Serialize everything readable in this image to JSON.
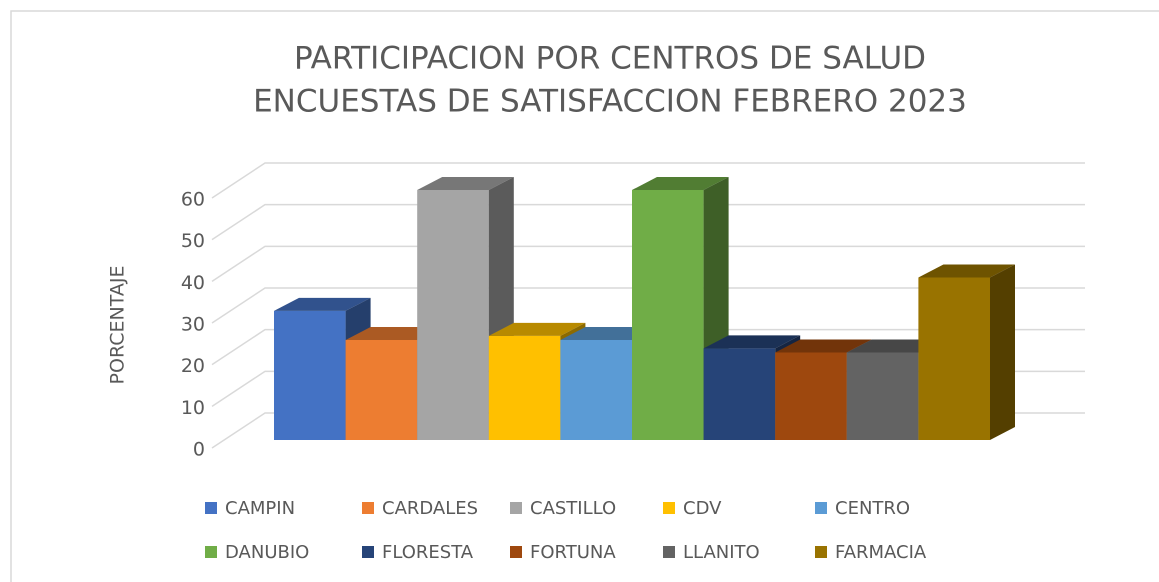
{
  "chart_data": {
    "type": "bar3d",
    "title": [
      "PARTICIPACION POR CENTROS DE SALUD",
      "ENCUESTAS DE SATISFACCION FEBRERO 2023"
    ],
    "y_label": "PORCENTAJE",
    "ylim": [
      0,
      60
    ],
    "yticks": [
      0,
      10,
      20,
      30,
      40,
      50,
      60
    ],
    "grid": true,
    "legend": "bottom",
    "series": [
      {
        "name": "CAMPIN",
        "color": "#4472c4",
        "values": [
          31
        ]
      },
      {
        "name": "CARDALES",
        "color": "#ed7d31",
        "values": [
          24
        ]
      },
      {
        "name": "CASTILLO",
        "color": "#a5a5a5",
        "values": [
          60
        ]
      },
      {
        "name": "CDV",
        "color": "#ffc000",
        "values": [
          25
        ]
      },
      {
        "name": "CENTRO",
        "color": "#5b9bd5",
        "values": [
          24
        ]
      },
      {
        "name": "DANUBIO",
        "color": "#70ad47",
        "values": [
          60
        ]
      },
      {
        "name": "FLORESTA",
        "color": "#264478",
        "values": [
          22
        ]
      },
      {
        "name": "FORTUNA",
        "color": "#9e480e",
        "values": [
          21
        ]
      },
      {
        "name": "LLANITO",
        "color": "#636363",
        "values": [
          21
        ]
      },
      {
        "name": "FARMACIA",
        "color": "#997300",
        "values": [
          39
        ]
      }
    ]
  }
}
